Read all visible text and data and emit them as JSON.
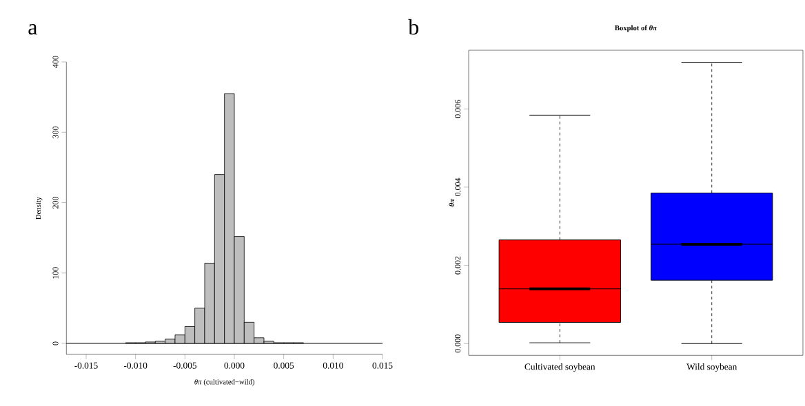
{
  "chart_data": [
    {
      "type": "histogram",
      "xlabel": "*θπ* (cultivated−wild)",
      "ylabel": "Density",
      "annotations": [
        "a"
      ],
      "bins": [
        -0.011,
        -0.01,
        -0.009,
        -0.008,
        -0.007,
        -0.006,
        -0.005,
        -0.004,
        -0.003,
        -0.002,
        -0.001,
        0.0,
        0.001,
        0.002,
        0.003,
        0.004,
        0.005,
        0.006,
        0.007
      ],
      "values": [
        1,
        1,
        2,
        3,
        6,
        12,
        24,
        50,
        114,
        240,
        355,
        152,
        30,
        8,
        3,
        1,
        1,
        1
      ],
      "color": "#bebebe",
      "xlim": [
        -0.017,
        0.015
      ],
      "ylim": [
        0,
        400
      ],
      "xticks": [
        -0.015,
        {
          "value": -0.01,
          "label": "-0.010"
        },
        -0.005,
        {
          "value": 0,
          "label": "0.000"
        },
        0.005,
        {
          "value": 0.01,
          "label": "0.010"
        },
        0.015
      ],
      "yticks": [
        0,
        100,
        200,
        300,
        400
      ],
      "ref_lines": [
        {
          "axis": "y",
          "value": 0
        }
      ],
      "grid": false
    },
    {
      "type": "box",
      "title": "Boxplot of *θπ*",
      "ylabel": "θπ",
      "annotations": [
        "b"
      ],
      "categories": [
        "Cultivated soybean",
        "Wild soybean"
      ],
      "boxes": [
        {
          "low": 2e-05,
          "q1": 0.00054,
          "median": 0.0014,
          "q3": 0.00265,
          "high": 0.00584
        },
        {
          "low": 0,
          "q1": 0.00162,
          "median": 0.00254,
          "q3": 0.00385,
          "high": 0.00719
        }
      ],
      "colors": [
        "#ff0000",
        "#0000ff"
      ],
      "ylim": [
        -0.0003,
        0.0075
      ],
      "yticks": [
        {
          "value": 0,
          "label": "0.000"
        },
        {
          "value": 0.002,
          "label": "0.002"
        },
        {
          "value": 0.004,
          "label": "0.004"
        },
        {
          "value": 0.006,
          "label": "0.006"
        }
      ],
      "grid": false
    }
  ]
}
